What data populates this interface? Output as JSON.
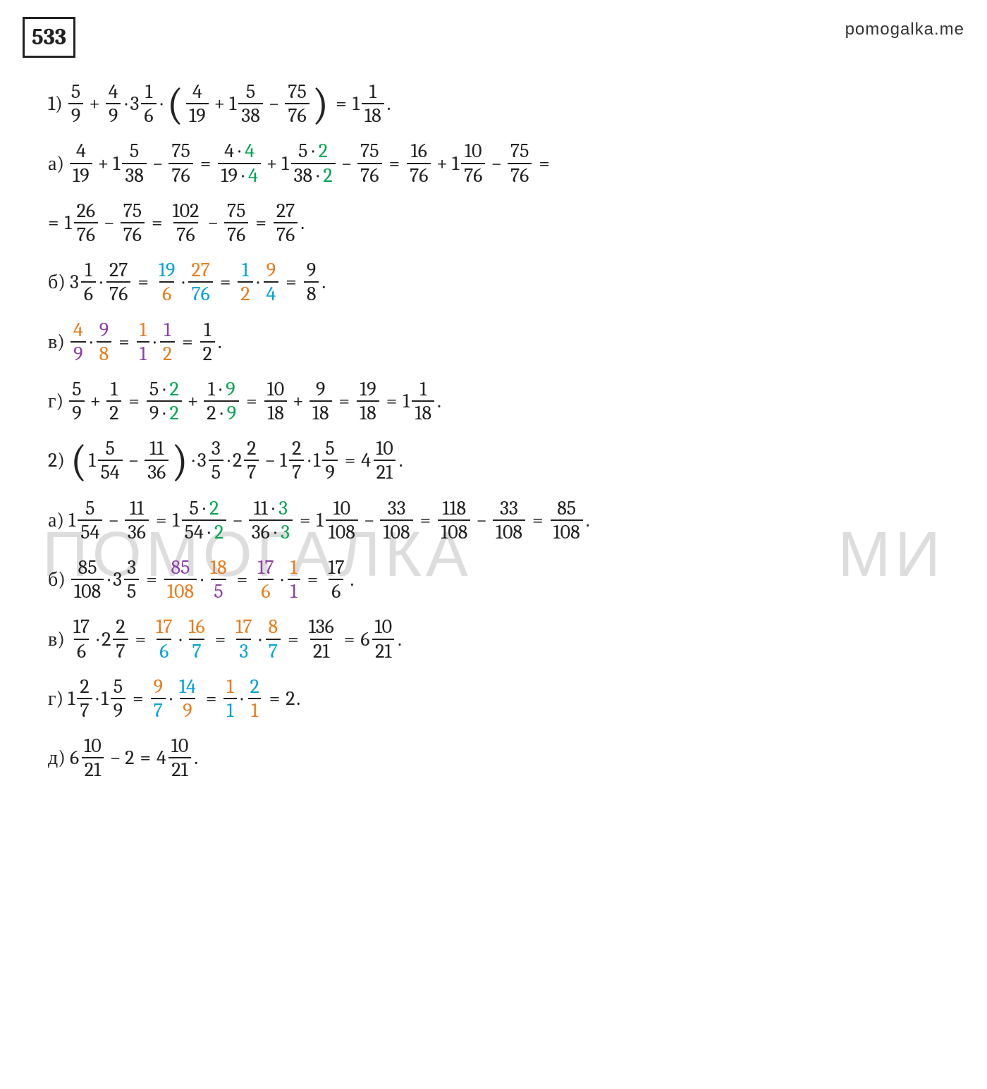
{
  "colors": {
    "text": "#222222",
    "green": "#00a651",
    "orange": "#e87d1e",
    "teal": "#00a3d9",
    "purple": "#8e3fa8",
    "blue": "#1e6fd9",
    "watermark": "#dddddd",
    "background": "#ffffff"
  },
  "typography": {
    "font_family": "Cambria",
    "base_size_pt": 21,
    "title_size_pt": 24,
    "watermark_family": "Arial",
    "watermark_size_pt": 68
  },
  "page": {
    "problem_number": "533",
    "site": "pomogalka.me",
    "watermark_left": "ПОМОГАЛКА",
    "watermark_right": "МИ"
  },
  "problem1": {
    "num": "1)",
    "main": {
      "t1": {
        "n": "5",
        "d": "9"
      },
      "t2": {
        "n": "4",
        "d": "9"
      },
      "t3": {
        "w": "3",
        "n": "1",
        "d": "6"
      },
      "p1": {
        "n": "4",
        "d": "19"
      },
      "p2": {
        "w": "1",
        "n": "5",
        "d": "38"
      },
      "p3": {
        "n": "75",
        "d": "76"
      },
      "res": {
        "w": "1",
        "n": "1",
        "d": "18"
      }
    },
    "a": {
      "lbl": "а)",
      "s1": {
        "n": "4",
        "d": "19"
      },
      "s2": {
        "w": "1",
        "n": "5",
        "d": "38"
      },
      "s3": {
        "n": "75",
        "d": "76"
      },
      "s4": {
        "n1": "4",
        "m1": "4",
        "d1": "19",
        "m1b": "4"
      },
      "s5": {
        "w": "1",
        "n1": "5",
        "m1": "2",
        "d1": "38",
        "m1b": "2"
      },
      "s6": {
        "n": "75",
        "d": "76"
      },
      "s7": {
        "n": "16",
        "d": "76"
      },
      "s8": {
        "w": "1",
        "n": "10",
        "d": "76"
      },
      "s9": {
        "n": "75",
        "d": "76"
      },
      "line2": {
        "t1": {
          "w": "1",
          "n": "26",
          "d": "76"
        },
        "t2": {
          "n": "75",
          "d": "76"
        },
        "t3": {
          "n": "102",
          "d": "76"
        },
        "t4": {
          "n": "75",
          "d": "76"
        },
        "t5": {
          "n": "27",
          "d": "76"
        }
      }
    },
    "b": {
      "lbl": "б)",
      "t1": {
        "w": "3",
        "n": "1",
        "d": "6"
      },
      "t2": {
        "n": "27",
        "d": "76"
      },
      "t3": {
        "n": "19",
        "d": "6"
      },
      "t4": {
        "n": "27",
        "d": "76"
      },
      "t5": {
        "n": "1",
        "d": "2"
      },
      "t6": {
        "n": "9",
        "d": "4"
      },
      "t7": {
        "n": "9",
        "d": "8"
      }
    },
    "v": {
      "lbl": "в)",
      "t1": {
        "n": "4",
        "d": "9"
      },
      "t2": {
        "n": "9",
        "d": "8"
      },
      "t3": {
        "n": "1",
        "d": "1"
      },
      "t4": {
        "n": "1",
        "d": "2"
      },
      "t5": {
        "n": "1",
        "d": "2"
      }
    },
    "g": {
      "lbl": "г)",
      "t1": {
        "n": "5",
        "d": "9"
      },
      "t2": {
        "n": "1",
        "d": "2"
      },
      "t3": {
        "n1": "5",
        "m": "2",
        "d1": "9"
      },
      "t4": {
        "n1": "1",
        "m": "9",
        "d1": "2"
      },
      "t5": {
        "n": "10",
        "d": "18"
      },
      "t6": {
        "n": "9",
        "d": "18"
      },
      "t7": {
        "n": "19",
        "d": "18"
      },
      "t8": {
        "w": "1",
        "n": "1",
        "d": "18"
      }
    }
  },
  "problem2": {
    "num": "2)",
    "main": {
      "p1": {
        "w": "1",
        "n": "5",
        "d": "54"
      },
      "p2": {
        "n": "11",
        "d": "36"
      },
      "t1": {
        "w": "3",
        "n": "3",
        "d": "5"
      },
      "t2": {
        "w": "2",
        "n": "2",
        "d": "7"
      },
      "t3": {
        "w": "1",
        "n": "2",
        "d": "7"
      },
      "t4": {
        "w": "1",
        "n": "5",
        "d": "9"
      },
      "res": {
        "w": "4",
        "n": "10",
        "d": "21"
      }
    },
    "a": {
      "lbl": "а)",
      "t1": {
        "w": "1",
        "n": "5",
        "d": "54"
      },
      "t2": {
        "n": "11",
        "d": "36"
      },
      "t3": {
        "w": "1",
        "n1": "5",
        "m": "2",
        "d1": "54"
      },
      "t4": {
        "n1": "11",
        "m": "3",
        "d1": "36"
      },
      "t5": {
        "w": "1",
        "n": "10",
        "d": "108"
      },
      "t6": {
        "n": "33",
        "d": "108"
      },
      "t7": {
        "n": "118",
        "d": "108"
      },
      "t8": {
        "n": "33",
        "d": "108"
      },
      "t9": {
        "n": "85",
        "d": "108"
      }
    },
    "b": {
      "lbl": "б)",
      "t1": {
        "n": "85",
        "d": "108"
      },
      "t2": {
        "w": "3",
        "n": "3",
        "d": "5"
      },
      "t3": {
        "n": "85",
        "d": "108"
      },
      "t4": {
        "n": "18",
        "d": "5"
      },
      "t5": {
        "n": "17",
        "d": "6"
      },
      "t6": {
        "n": "1",
        "d": "1"
      },
      "t7": {
        "n": "17",
        "d": "6"
      }
    },
    "v": {
      "lbl": "в)",
      "t1": {
        "n": "17",
        "d": "6"
      },
      "t2": {
        "w": "2",
        "n": "2",
        "d": "7"
      },
      "t3": {
        "n": "17",
        "d": "6"
      },
      "t4": {
        "n": "16",
        "d": "7"
      },
      "t5": {
        "n": "17",
        "d": "3"
      },
      "t6": {
        "n": "8",
        "d": "7"
      },
      "t7": {
        "n": "136",
        "d": "21"
      },
      "t8": {
        "w": "6",
        "n": "10",
        "d": "21"
      }
    },
    "g": {
      "lbl": "г)",
      "t1": {
        "w": "1",
        "n": "2",
        "d": "7"
      },
      "t2": {
        "w": "1",
        "n": "5",
        "d": "9"
      },
      "t3": {
        "n": "9",
        "d": "7"
      },
      "t4": {
        "n": "14",
        "d": "9"
      },
      "t5": {
        "n": "1",
        "d": "1"
      },
      "t6": {
        "n": "2",
        "d": "1"
      },
      "res": "2"
    },
    "d": {
      "lbl": "д)",
      "t1": {
        "w": "6",
        "n": "10",
        "d": "21"
      },
      "minus": "2",
      "res": {
        "w": "4",
        "n": "10",
        "d": "21"
      }
    }
  }
}
